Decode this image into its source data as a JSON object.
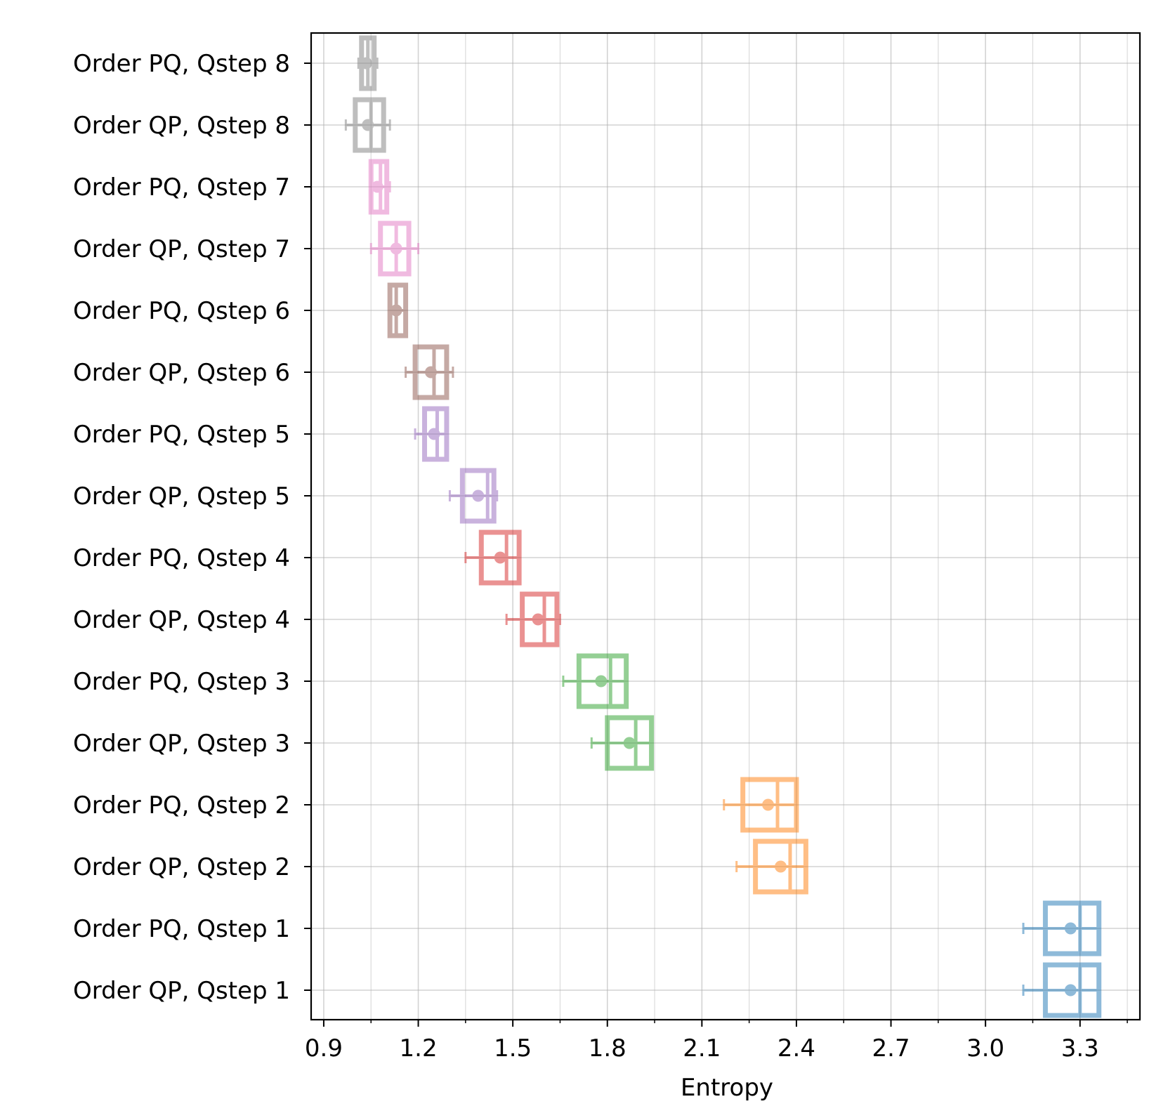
{
  "chart_data": {
    "type": "box",
    "orientation": "horizontal",
    "xlabel": "Entropy",
    "ylabel": "",
    "title": "",
    "xlim": [
      0.86,
      3.49
    ],
    "xticks": [
      0.9,
      1.2,
      1.5,
      1.8,
      2.1,
      2.4,
      2.7,
      3.0,
      3.3
    ],
    "xtick_labels": [
      "0.9",
      "1.2",
      "1.5",
      "1.8",
      "2.1",
      "2.4",
      "2.7",
      "3.0",
      "3.3"
    ],
    "minor_step": 0.15,
    "grid": true,
    "series": [
      {
        "label": "Order PQ, Qstep 8",
        "color": "#7f7f7f",
        "q1": 1.02,
        "q3": 1.06,
        "median": 1.04,
        "mean": 1.035,
        "whisker_low": 1.01,
        "whisker_high": 1.07
      },
      {
        "label": "Order QP, Qstep 8",
        "color": "#7f7f7f",
        "q1": 1.0,
        "q3": 1.09,
        "median": 1.05,
        "mean": 1.04,
        "whisker_low": 0.97,
        "whisker_high": 1.11
      },
      {
        "label": "Order PQ, Qstep 7",
        "color": "#e377c2",
        "q1": 1.05,
        "q3": 1.1,
        "median": 1.08,
        "mean": 1.07,
        "whisker_low": 1.05,
        "whisker_high": 1.11
      },
      {
        "label": "Order QP, Qstep 7",
        "color": "#e377c2",
        "q1": 1.08,
        "q3": 1.17,
        "median": 1.13,
        "mean": 1.13,
        "whisker_low": 1.05,
        "whisker_high": 1.2
      },
      {
        "label": "Order PQ, Qstep 6",
        "color": "#8c564b",
        "q1": 1.11,
        "q3": 1.16,
        "median": 1.13,
        "mean": 1.13,
        "whisker_low": 1.11,
        "whisker_high": 1.16
      },
      {
        "label": "Order QP, Qstep 6",
        "color": "#8c564b",
        "q1": 1.19,
        "q3": 1.29,
        "median": 1.25,
        "mean": 1.24,
        "whisker_low": 1.16,
        "whisker_high": 1.31
      },
      {
        "label": "Order PQ, Qstep 5",
        "color": "#9467bd",
        "q1": 1.22,
        "q3": 1.29,
        "median": 1.26,
        "mean": 1.25,
        "whisker_low": 1.19,
        "whisker_high": 1.29
      },
      {
        "label": "Order QP, Qstep 5",
        "color": "#9467bd",
        "q1": 1.34,
        "q3": 1.44,
        "median": 1.42,
        "mean": 1.39,
        "whisker_low": 1.3,
        "whisker_high": 1.45
      },
      {
        "label": "Order PQ, Qstep 4",
        "color": "#d62728",
        "q1": 1.4,
        "q3": 1.52,
        "median": 1.48,
        "mean": 1.46,
        "whisker_low": 1.35,
        "whisker_high": 1.52
      },
      {
        "label": "Order QP, Qstep 4",
        "color": "#d62728",
        "q1": 1.53,
        "q3": 1.64,
        "median": 1.6,
        "mean": 1.58,
        "whisker_low": 1.48,
        "whisker_high": 1.65
      },
      {
        "label": "Order PQ, Qstep 3",
        "color": "#2ca02c",
        "q1": 1.71,
        "q3": 1.86,
        "median": 1.81,
        "mean": 1.78,
        "whisker_low": 1.66,
        "whisker_high": 1.86
      },
      {
        "label": "Order QP, Qstep 3",
        "color": "#2ca02c",
        "q1": 1.8,
        "q3": 1.94,
        "median": 1.89,
        "mean": 1.87,
        "whisker_low": 1.75,
        "whisker_high": 1.94
      },
      {
        "label": "Order PQ, Qstep 2",
        "color": "#ff7f0e",
        "q1": 2.23,
        "q3": 2.4,
        "median": 2.34,
        "mean": 2.31,
        "whisker_low": 2.17,
        "whisker_high": 2.4
      },
      {
        "label": "Order QP, Qstep 2",
        "color": "#ff7f0e",
        "q1": 2.27,
        "q3": 2.43,
        "median": 2.38,
        "mean": 2.35,
        "whisker_low": 2.21,
        "whisker_high": 2.43
      },
      {
        "label": "Order PQ, Qstep 1",
        "color": "#1f77b4",
        "q1": 3.19,
        "q3": 3.36,
        "median": 3.3,
        "mean": 3.27,
        "whisker_low": 3.12,
        "whisker_high": 3.36
      },
      {
        "label": "Order QP, Qstep 1",
        "color": "#1f77b4",
        "q1": 3.19,
        "q3": 3.36,
        "median": 3.3,
        "mean": 3.27,
        "whisker_low": 3.12,
        "whisker_high": 3.36
      }
    ]
  }
}
